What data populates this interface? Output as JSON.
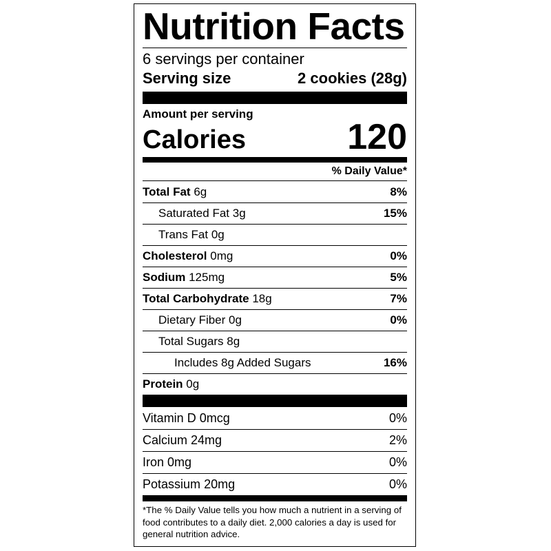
{
  "title": "Nutrition Facts",
  "servings_per_container": "6 servings per container",
  "serving_size_label": "Serving size",
  "serving_size_value": "2 cookies (28g)",
  "amount_per_serving": "Amount per serving",
  "calories_label": "Calories",
  "calories_value": "120",
  "daily_value_header": "% Daily Value*",
  "nutrients": [
    {
      "name": "Total Fat",
      "amount": "6g",
      "dv": "8%"
    },
    {
      "name": "Saturated Fat",
      "amount": "3g",
      "dv": "15%"
    },
    {
      "name": "Trans Fat",
      "amount": "0g",
      "dv": ""
    },
    {
      "name": "Cholesterol",
      "amount": "0mg",
      "dv": "0%"
    },
    {
      "name": "Sodium",
      "amount": "125mg",
      "dv": "5%"
    },
    {
      "name": "Total Carbohydrate",
      "amount": "18g",
      "dv": "7%"
    },
    {
      "name": "Dietary Fiber",
      "amount": "0g",
      "dv": "0%"
    },
    {
      "name": "Total Sugars",
      "amount": "8g",
      "dv": ""
    },
    {
      "name": "Includes 8g Added Sugars",
      "amount": "",
      "dv": "16%"
    },
    {
      "name": "Protein",
      "amount": "0g",
      "dv": ""
    }
  ],
  "vitamins": [
    {
      "name": "Vitamin D",
      "amount": "0mcg",
      "dv": "0%"
    },
    {
      "name": "Calcium",
      "amount": "24mg",
      "dv": "2%"
    },
    {
      "name": "Iron",
      "amount": "0mg",
      "dv": "0%"
    },
    {
      "name": "Potassium",
      "amount": "20mg",
      "dv": "0%"
    }
  ],
  "footnote": "*The % Daily Value tells you how much a nutrient in a serving of food contributes to a daily diet. 2,000 calories a day is used for general nutrition advice."
}
